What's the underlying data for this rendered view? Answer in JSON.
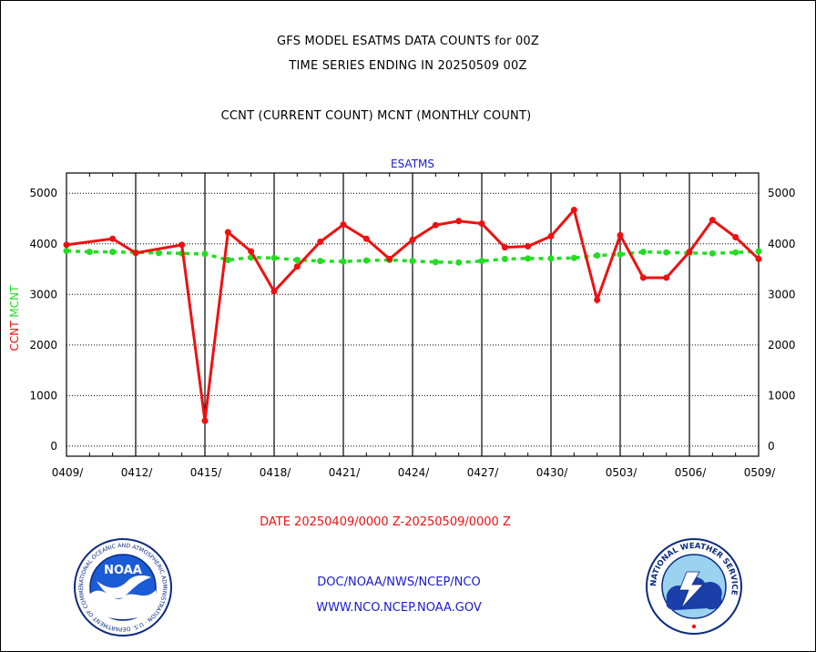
{
  "titles": {
    "line1": "GFS MODEL ESATMS DATA COUNTS for 00Z",
    "line2": "TIME SERIES ENDING IN 20250509 00Z",
    "line3": "CCNT (CURRENT COUNT) MCNT (MONTHLY COUNT)"
  },
  "date_range": "DATE 20250409/0000 Z-20250509/0000 Z",
  "footer": {
    "line1": "DOC/NOAA/NWS/NCEP/NCO",
    "line2": "WWW.NCO.NCEP.NOAA.GOV"
  },
  "logos": {
    "left": {
      "name": "noaa-logo",
      "text": "NOAA",
      "ring_text": "NATIONAL OCEANIC AND ATMOSPHERIC ADMINISTRATION · U.S. DEPARTMENT OF COMMERCE"
    },
    "right": {
      "name": "nws-logo",
      "ring_text": "NATIONAL WEATHER SERVICE"
    }
  },
  "colors": {
    "ccnt": "#ee1111",
    "mcnt": "#22dd22",
    "title_blue": "#1a1acc",
    "axis": "#000000"
  },
  "chart_data": {
    "type": "line",
    "title": "ESATMS",
    "ylabel_parts": [
      {
        "text": "CCNT",
        "color": "#ee1111"
      },
      {
        "text": "MCNT",
        "color": "#22dd22"
      }
    ],
    "x_tick_labels": [
      "0409/",
      "0412/",
      "0415/",
      "0418/",
      "0421/",
      "0424/",
      "0427/",
      "0430/",
      "0503/",
      "0506/",
      "0509/"
    ],
    "x_range_days": [
      0,
      30
    ],
    "ylim": [
      -200,
      5400
    ],
    "y_ticks": [
      0,
      1000,
      2000,
      3000,
      4000,
      5000
    ],
    "grid": true,
    "series": [
      {
        "name": "CCNT",
        "color": "#ee1111",
        "x": [
          0,
          2,
          3,
          5,
          6,
          7,
          8,
          9,
          10,
          11,
          12,
          13,
          14,
          15,
          16,
          17,
          18,
          19,
          20,
          21,
          22,
          23,
          24,
          25,
          26,
          27,
          28,
          29,
          30
        ],
        "values": [
          3980,
          4100,
          3820,
          3980,
          500,
          4230,
          3850,
          3060,
          3550,
          4040,
          4380,
          4100,
          3700,
          4080,
          4370,
          4450,
          4400,
          3930,
          3950,
          4150,
          4670,
          2890,
          4170,
          3330,
          3330,
          3840,
          4470,
          4130,
          3700
        ]
      },
      {
        "name": "MCNT",
        "color": "#22dd22",
        "x": [
          0,
          1,
          2,
          3,
          4,
          5,
          6,
          7,
          8,
          9,
          10,
          11,
          12,
          13,
          14,
          15,
          16,
          17,
          18,
          19,
          20,
          21,
          22,
          23,
          24,
          25,
          26,
          27,
          28,
          29,
          30
        ],
        "values": [
          3860,
          3840,
          3840,
          3830,
          3820,
          3810,
          3800,
          3680,
          3730,
          3720,
          3680,
          3660,
          3650,
          3670,
          3680,
          3660,
          3640,
          3630,
          3660,
          3700,
          3710,
          3710,
          3720,
          3770,
          3790,
          3840,
          3830,
          3820,
          3810,
          3830,
          3850
        ]
      }
    ]
  }
}
